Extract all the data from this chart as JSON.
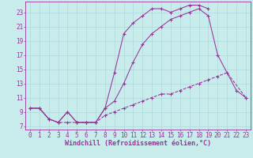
{
  "background_color": "#c8ecec",
  "line_color": "#993399",
  "grid_color": "#b0d8d8",
  "xlabel": "Windchill (Refroidissement éolien,°C)",
  "xlabel_fontsize": 6.0,
  "tick_fontsize": 5.5,
  "xlim": [
    -0.5,
    23.5
  ],
  "ylim": [
    6.5,
    24.5
  ],
  "yticks": [
    7,
    9,
    11,
    13,
    15,
    17,
    19,
    21,
    23
  ],
  "xticks": [
    0,
    1,
    2,
    3,
    4,
    5,
    6,
    7,
    8,
    9,
    10,
    11,
    12,
    13,
    14,
    15,
    16,
    17,
    18,
    19,
    20,
    21,
    22,
    23
  ],
  "line1_x": [
    0,
    1,
    2,
    3,
    4,
    5,
    6,
    7,
    8,
    9,
    10,
    11,
    12,
    13,
    14,
    15,
    16,
    17,
    18,
    19,
    20,
    21,
    23
  ],
  "line1_y": [
    9.5,
    9.5,
    8.0,
    7.5,
    7.5,
    7.5,
    7.5,
    7.5,
    8.5,
    9.0,
    9.5,
    10.0,
    10.5,
    11.0,
    11.5,
    11.5,
    12.0,
    12.5,
    13.0,
    13.5,
    14.0,
    14.5,
    11.0
  ],
  "line2_x": [
    0,
    1,
    2,
    3,
    4,
    5,
    6,
    7,
    8,
    9,
    10,
    11,
    12,
    13,
    14,
    15,
    16,
    17,
    18,
    19
  ],
  "line2_y": [
    9.5,
    9.5,
    8.0,
    7.5,
    9.0,
    7.5,
    7.5,
    7.5,
    9.5,
    14.5,
    20.0,
    21.5,
    22.5,
    23.5,
    23.5,
    23.0,
    23.5,
    24.0,
    24.0,
    23.5
  ],
  "line3_x": [
    0,
    1,
    2,
    3,
    4,
    5,
    6,
    7,
    8,
    9,
    10,
    11,
    12,
    13,
    14,
    15,
    16,
    17,
    18,
    19,
    20,
    22,
    23
  ],
  "line3_y": [
    9.5,
    9.5,
    8.0,
    7.5,
    9.0,
    7.5,
    7.5,
    7.5,
    9.5,
    10.5,
    13.0,
    16.0,
    18.5,
    20.0,
    21.0,
    22.0,
    22.5,
    23.0,
    23.5,
    22.5,
    17.0,
    12.0,
    11.0
  ]
}
